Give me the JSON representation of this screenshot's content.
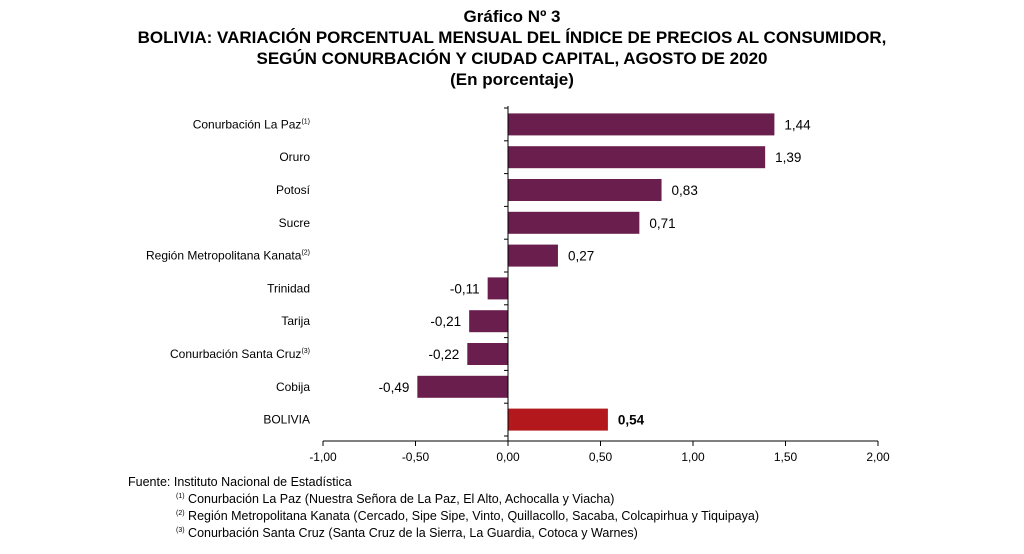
{
  "titles": {
    "graph_number": "Gráfico Nº 3",
    "line1": "BOLIVIA: VARIACIÓN PORCENTUAL MENSUAL DEL ÍNDICE DE PRECIOS AL CONSUMIDOR,",
    "line2": "SEGÚN CONURBACIÓN Y CIUDAD CAPITAL, AGOSTO DE 2020",
    "line3": "(En porcentaje)"
  },
  "chart_data": {
    "type": "bar",
    "orientation": "horizontal",
    "title": "BOLIVIA: VARIACIÓN PORCENTUAL MENSUAL DEL ÍNDICE DE PRECIOS AL CONSUMIDOR, SEGÚN CONURBACIÓN Y CIUDAD CAPITAL, AGOSTO DE 2020",
    "subtitle": "(En porcentaje)",
    "categories": [
      {
        "name": "Conurbación La Paz",
        "note": "(1)"
      },
      {
        "name": "Oruro",
        "note": ""
      },
      {
        "name": "Potosí",
        "note": ""
      },
      {
        "name": "Sucre",
        "note": ""
      },
      {
        "name": "Región Metropolitana Kanata",
        "note": "(2)"
      },
      {
        "name": "Trinidad",
        "note": ""
      },
      {
        "name": "Tarija",
        "note": ""
      },
      {
        "name": "Conurbación Santa Cruz",
        "note": "(3)"
      },
      {
        "name": "Cobija",
        "note": ""
      },
      {
        "name": "BOLIVIA",
        "note": ""
      }
    ],
    "values": [
      1.44,
      1.39,
      0.83,
      0.71,
      0.27,
      -0.11,
      -0.21,
      -0.22,
      -0.49,
      0.54
    ],
    "value_labels": [
      "1,44",
      "1,39",
      "0,83",
      "0,71",
      "0,27",
      "-0,11",
      "-0,21",
      "-0,22",
      "-0,49",
      "0,54"
    ],
    "highlight_index": 9,
    "xlim": [
      -1.0,
      2.0
    ],
    "xticks": [
      -1.0,
      -0.5,
      0.0,
      0.5,
      1.0,
      1.5,
      2.0
    ],
    "xtick_labels": [
      "-1,00",
      "-0,50",
      "0,00",
      "0,50",
      "1,00",
      "1,50",
      "2,00"
    ],
    "colors": {
      "bar": "#6a1e4d",
      "highlight": "#b3191c"
    },
    "grid": false
  },
  "source": {
    "main": "Fuente: Instituto Nacional de Estadística",
    "notes": [
      {
        "mark": "(1)",
        "text": "Conurbación La Paz (Nuestra Señora de La Paz, El Alto, Achocalla y Viacha)"
      },
      {
        "mark": "(2)",
        "text": "Región Metropolitana Kanata (Cercado, Sipe Sipe, Vinto, Quillacollo, Sacaba, Colcapirhua y Tiquipaya)"
      },
      {
        "mark": "(3)",
        "text": "Conurbación Santa Cruz (Santa Cruz de la Sierra, La Guardia, Cotoca y Warnes)"
      }
    ]
  }
}
